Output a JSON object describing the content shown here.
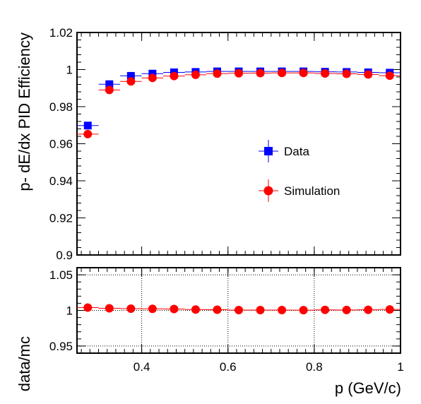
{
  "chart_data": [
    {
      "type": "scatter",
      "ylabel": "p- dE/dx PID Efficiency",
      "xlabel": "",
      "xlim": [
        0.25,
        1.0
      ],
      "ylim": [
        0.9,
        1.02
      ],
      "x_ticks": [
        0.4,
        0.6,
        0.8,
        1.0
      ],
      "x_tick_labels": [
        "",
        "",
        "",
        ""
      ],
      "y_ticks": [
        0.9,
        0.92,
        0.94,
        0.96,
        0.98,
        1.0,
        1.02
      ],
      "y_tick_labels": [
        "0.9",
        "0.92",
        "0.94",
        "0.96",
        "0.98",
        "1",
        "1.02"
      ],
      "grid": false,
      "x_bin_half_width": 0.025,
      "legend": {
        "position": "center-right",
        "entries": [
          {
            "label": "Data",
            "marker": "square",
            "color": "#0000ff"
          },
          {
            "label": "Simulation",
            "marker": "circle",
            "color": "#ff0000"
          }
        ]
      },
      "series": [
        {
          "name": "Data",
          "color": "#0000ff",
          "marker": "square",
          "x": [
            0.275,
            0.325,
            0.375,
            0.425,
            0.475,
            0.525,
            0.575,
            0.625,
            0.675,
            0.725,
            0.775,
            0.825,
            0.875,
            0.925,
            0.975
          ],
          "y": [
            0.9698,
            0.9921,
            0.9966,
            0.9978,
            0.9985,
            0.9987,
            0.999,
            0.999,
            0.999,
            0.999,
            0.999,
            0.9988,
            0.9987,
            0.9985,
            0.9983
          ],
          "yerr": [
            0.0015,
            0.0008,
            0.0006,
            0.0005,
            0.0005,
            0.0004,
            0.0004,
            0.0004,
            0.0004,
            0.0004,
            0.0004,
            0.0004,
            0.0005,
            0.0005,
            0.0006
          ]
        },
        {
          "name": "Simulation",
          "color": "#ff0000",
          "marker": "circle",
          "x": [
            0.275,
            0.325,
            0.375,
            0.425,
            0.475,
            0.525,
            0.575,
            0.625,
            0.675,
            0.725,
            0.775,
            0.825,
            0.875,
            0.925,
            0.975
          ],
          "y": [
            0.9652,
            0.989,
            0.9936,
            0.9955,
            0.9965,
            0.9972,
            0.9978,
            0.998,
            0.9981,
            0.9982,
            0.9982,
            0.9979,
            0.9977,
            0.9974,
            0.9967
          ],
          "yerr": [
            0.0015,
            0.0009,
            0.0007,
            0.0006,
            0.0005,
            0.0005,
            0.0004,
            0.0004,
            0.0004,
            0.0004,
            0.0004,
            0.0005,
            0.0005,
            0.0006,
            0.0007
          ]
        }
      ]
    },
    {
      "type": "scatter",
      "ylabel": "data/mc",
      "xlabel": "p (GeV/c)",
      "xlim": [
        0.25,
        1.0
      ],
      "ylim": [
        0.94,
        1.06
      ],
      "x_ticks": [
        0.4,
        0.6,
        0.8,
        1.0
      ],
      "x_tick_labels": [
        "0.4",
        "0.6",
        "0.8",
        "1"
      ],
      "y_ticks": [
        0.95,
        1.0,
        1.05
      ],
      "y_tick_labels": [
        "0.95",
        "1",
        "1.05"
      ],
      "grid": true,
      "x_bin_half_width": 0.025,
      "series": [
        {
          "name": "",
          "color": "#ff0000",
          "marker": "circle",
          "x": [
            0.275,
            0.325,
            0.375,
            0.425,
            0.475,
            0.525,
            0.575,
            0.625,
            0.675,
            0.725,
            0.775,
            0.825,
            0.875,
            0.925,
            0.975
          ],
          "y": [
            1.004,
            1.003,
            1.0025,
            1.0022,
            1.002,
            1.0012,
            1.001,
            1.0005,
            1.0005,
            1.0005,
            1.0004,
            1.0008,
            1.0006,
            1.0009,
            1.0014
          ],
          "yerr": [
            0.0015,
            0.001,
            0.0008,
            0.0007,
            0.0006,
            0.0006,
            0.0005,
            0.0005,
            0.0005,
            0.0005,
            0.0005,
            0.0006,
            0.0006,
            0.0007,
            0.0008
          ]
        }
      ]
    }
  ]
}
